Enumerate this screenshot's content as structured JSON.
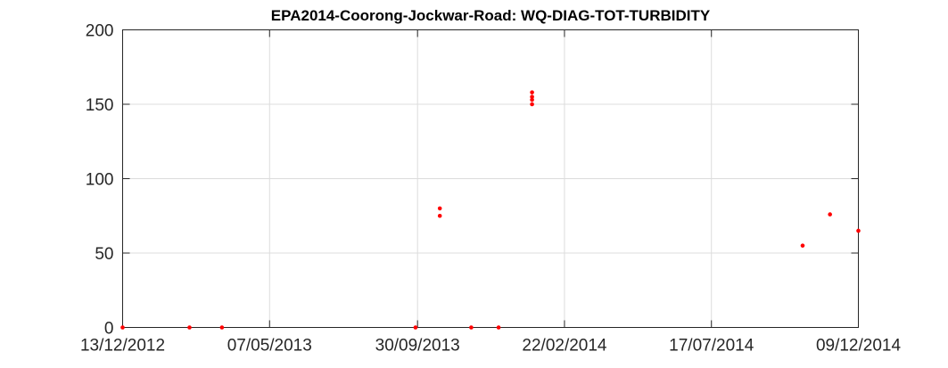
{
  "chart_data": {
    "type": "scatter",
    "title": "EPA2014-Coorong-Jockwar-Road: WQ-DIAG-TOT-TURBIDITY",
    "xlabel": "",
    "ylabel": "",
    "x_type": "date",
    "xlim": [
      "2012-12-13",
      "2014-12-09"
    ],
    "ylim": [
      0,
      200
    ],
    "x_ticks": [
      {
        "date": "2012-12-13",
        "label": "13/12/2012"
      },
      {
        "date": "2013-05-07",
        "label": "07/05/2013"
      },
      {
        "date": "2013-09-30",
        "label": "30/09/2013"
      },
      {
        "date": "2014-02-22",
        "label": "22/02/2014"
      },
      {
        "date": "2014-07-17",
        "label": "17/07/2014"
      },
      {
        "date": "2014-12-09",
        "label": "09/12/2014"
      }
    ],
    "y_ticks": [
      0,
      50,
      100,
      150,
      200
    ],
    "grid": true,
    "marker_color": "#ff0000",
    "series": [
      {
        "points": [
          {
            "x": "2012-12-13",
            "y": 0
          },
          {
            "x": "2013-02-17",
            "y": 0
          },
          {
            "x": "2013-03-21",
            "y": 0
          },
          {
            "x": "2013-09-28",
            "y": 0
          },
          {
            "x": "2013-10-22",
            "y": 80
          },
          {
            "x": "2013-10-22",
            "y": 75
          },
          {
            "x": "2013-11-22",
            "y": 0
          },
          {
            "x": "2013-12-19",
            "y": 0
          },
          {
            "x": "2014-01-21",
            "y": 150
          },
          {
            "x": "2014-01-21",
            "y": 153
          },
          {
            "x": "2014-01-21",
            "y": 155
          },
          {
            "x": "2014-01-21",
            "y": 158
          },
          {
            "x": "2014-10-15",
            "y": 55
          },
          {
            "x": "2014-11-11",
            "y": 76
          },
          {
            "x": "2014-12-09",
            "y": 65
          }
        ]
      }
    ]
  }
}
